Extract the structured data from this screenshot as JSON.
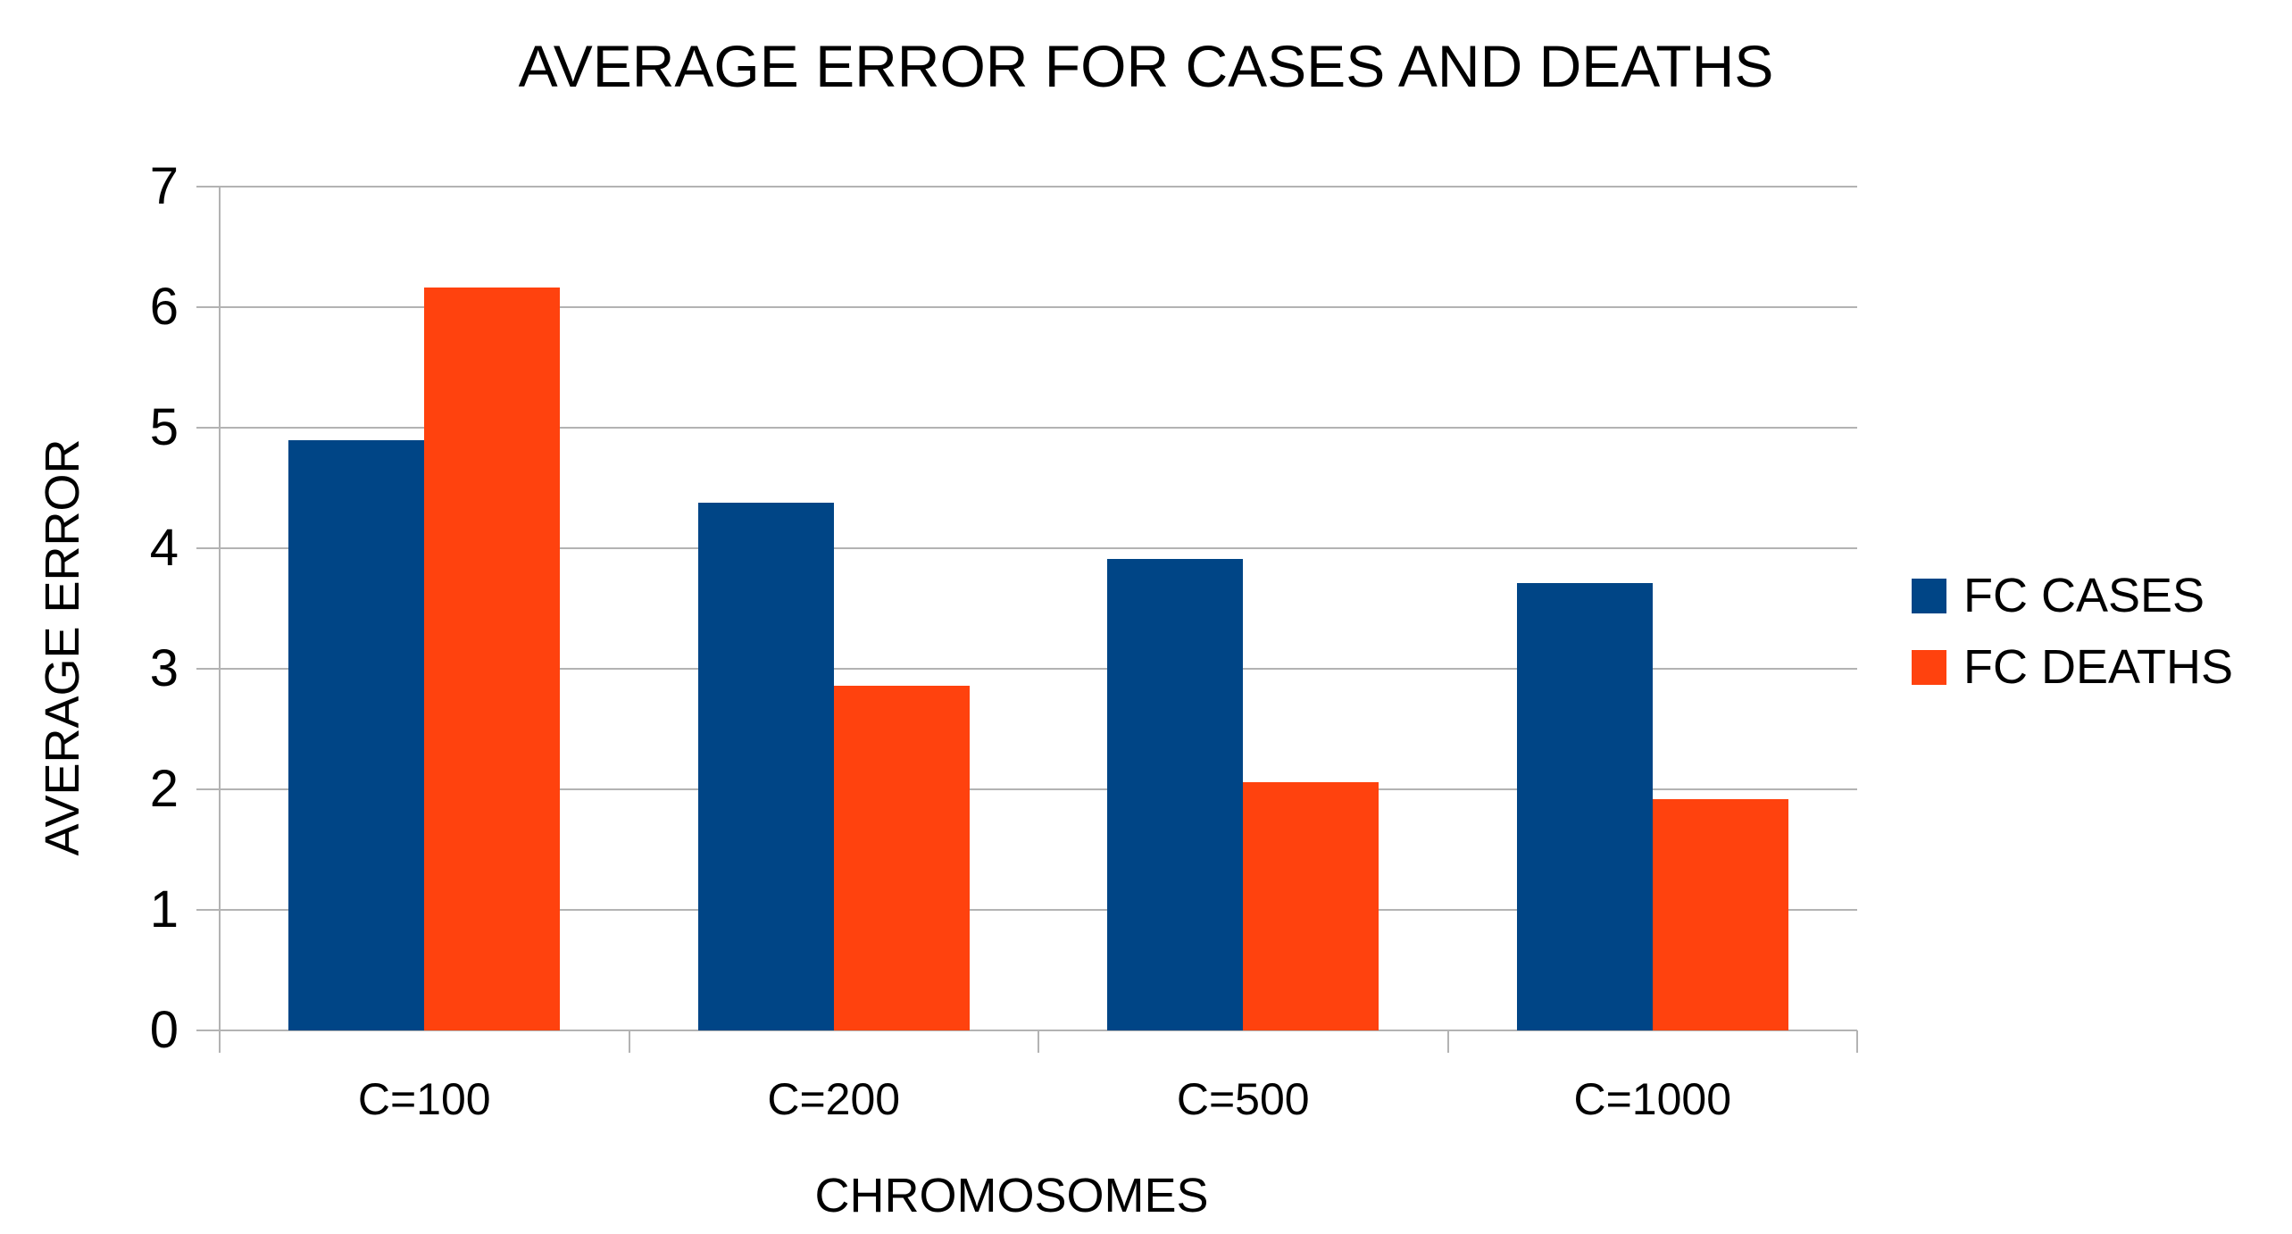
{
  "chart_data": {
    "type": "bar",
    "title": "AVERAGE ERROR FOR CASES AND DEATHS",
    "xlabel": "CHROMOSOMES",
    "ylabel": "AVERAGE ERROR",
    "categories": [
      "C=100",
      "C=200",
      "C=500",
      "C=1000"
    ],
    "series": [
      {
        "name": "FC CASES",
        "color": "#004586",
        "values": [
          4.9,
          4.38,
          3.91,
          3.71
        ]
      },
      {
        "name": "FC DEATHS",
        "color": "#FF420E",
        "values": [
          6.16,
          2.86,
          2.06,
          1.92
        ]
      }
    ],
    "ylim": [
      0,
      7
    ],
    "yticks": [
      0,
      1,
      2,
      3,
      4,
      5,
      6,
      7
    ],
    "grid": true,
    "legend_position": "right",
    "colors": {
      "grid": "#b3b3b3",
      "axis": "#b3b3b3",
      "text": "#000000",
      "background": "#ffffff"
    }
  }
}
